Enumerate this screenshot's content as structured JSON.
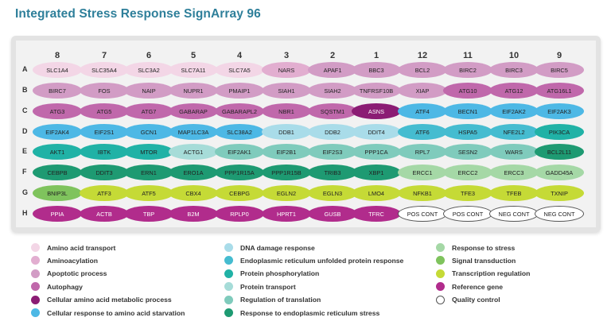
{
  "title": "Integrated Stress Response SignArray 96",
  "columns": [
    "8",
    "7",
    "6",
    "5",
    "4",
    "3",
    "2",
    "1",
    "12",
    "11",
    "10",
    "9"
  ],
  "rows": [
    {
      "label": "A",
      "wells": [
        {
          "gene": "SLC1A4",
          "cat": "amino_acid_transport"
        },
        {
          "gene": "SLC35A4",
          "cat": "amino_acid_transport"
        },
        {
          "gene": "SLC3A2",
          "cat": "amino_acid_transport"
        },
        {
          "gene": "SLC7A11",
          "cat": "amino_acid_transport"
        },
        {
          "gene": "SLC7A5",
          "cat": "amino_acid_transport"
        },
        {
          "gene": "NARS",
          "cat": "aminoacylation"
        },
        {
          "gene": "APAF1",
          "cat": "apoptotic"
        },
        {
          "gene": "BBC3",
          "cat": "apoptotic"
        },
        {
          "gene": "BCL2",
          "cat": "apoptotic"
        },
        {
          "gene": "BIRC2",
          "cat": "apoptotic"
        },
        {
          "gene": "BIRC3",
          "cat": "apoptotic"
        },
        {
          "gene": "BIRC5",
          "cat": "apoptotic"
        }
      ]
    },
    {
      "label": "B",
      "wells": [
        {
          "gene": "BIRC7",
          "cat": "apoptotic"
        },
        {
          "gene": "FOS",
          "cat": "apoptotic"
        },
        {
          "gene": "NAIP",
          "cat": "apoptotic"
        },
        {
          "gene": "NUPR1",
          "cat": "apoptotic"
        },
        {
          "gene": "PMAIP1",
          "cat": "apoptotic"
        },
        {
          "gene": "SIAH1",
          "cat": "apoptotic"
        },
        {
          "gene": "SIAH2",
          "cat": "apoptotic"
        },
        {
          "gene": "TNFRSF10B",
          "cat": "apoptotic"
        },
        {
          "gene": "XIAP",
          "cat": "apoptotic"
        },
        {
          "gene": "ATG10",
          "cat": "autophagy"
        },
        {
          "gene": "ATG12",
          "cat": "autophagy"
        },
        {
          "gene": "ATG16L1",
          "cat": "autophagy"
        }
      ]
    },
    {
      "label": "C",
      "wells": [
        {
          "gene": "ATG3",
          "cat": "autophagy"
        },
        {
          "gene": "ATG5",
          "cat": "autophagy"
        },
        {
          "gene": "ATG7",
          "cat": "autophagy"
        },
        {
          "gene": "GABARAP",
          "cat": "autophagy"
        },
        {
          "gene": "GABARAPL2",
          "cat": "autophagy"
        },
        {
          "gene": "NBR1",
          "cat": "autophagy"
        },
        {
          "gene": "SQSTM1",
          "cat": "autophagy"
        },
        {
          "gene": "ASNS",
          "cat": "amino_acid_metabolic"
        },
        {
          "gene": "ATF4",
          "cat": "aa_starvation"
        },
        {
          "gene": "BECN1",
          "cat": "aa_starvation"
        },
        {
          "gene": "EIF2AK2",
          "cat": "aa_starvation"
        },
        {
          "gene": "EIF2AK3",
          "cat": "aa_starvation"
        }
      ]
    },
    {
      "label": "D",
      "wells": [
        {
          "gene": "EIF2AK4",
          "cat": "aa_starvation"
        },
        {
          "gene": "EIF2S1",
          "cat": "aa_starvation"
        },
        {
          "gene": "GCN1",
          "cat": "aa_starvation"
        },
        {
          "gene": "MAP1LC3A",
          "cat": "aa_starvation"
        },
        {
          "gene": "SLC38A2",
          "cat": "aa_starvation"
        },
        {
          "gene": "DDB1",
          "cat": "dna_damage"
        },
        {
          "gene": "DDB2",
          "cat": "dna_damage"
        },
        {
          "gene": "DDIT4",
          "cat": "dna_damage"
        },
        {
          "gene": "ATF6",
          "cat": "er_upr"
        },
        {
          "gene": "HSPA5",
          "cat": "er_upr"
        },
        {
          "gene": "NFE2L2",
          "cat": "er_upr"
        },
        {
          "gene": "PIK3CA",
          "cat": "protein_phosphorylation"
        }
      ]
    },
    {
      "label": "E",
      "wells": [
        {
          "gene": "AKT1",
          "cat": "protein_phosphorylation"
        },
        {
          "gene": "IBTK",
          "cat": "protein_phosphorylation"
        },
        {
          "gene": "MTOR",
          "cat": "protein_phosphorylation"
        },
        {
          "gene": "ACTG1",
          "cat": "protein_transport"
        },
        {
          "gene": "EIF2AK1",
          "cat": "regulation_translation"
        },
        {
          "gene": "EIF2B1",
          "cat": "regulation_translation"
        },
        {
          "gene": "EIF2S3",
          "cat": "regulation_translation"
        },
        {
          "gene": "PPP1CA",
          "cat": "regulation_translation"
        },
        {
          "gene": "RPL7",
          "cat": "regulation_translation"
        },
        {
          "gene": "SESN2",
          "cat": "regulation_translation"
        },
        {
          "gene": "WARS",
          "cat": "regulation_translation"
        },
        {
          "gene": "BCL2L11",
          "cat": "er_stress"
        }
      ]
    },
    {
      "label": "F",
      "wells": [
        {
          "gene": "CEBPB",
          "cat": "er_stress"
        },
        {
          "gene": "DDIT3",
          "cat": "er_stress"
        },
        {
          "gene": "ERN1",
          "cat": "er_stress"
        },
        {
          "gene": "ERO1A",
          "cat": "er_stress"
        },
        {
          "gene": "PPP1R15A",
          "cat": "er_stress"
        },
        {
          "gene": "PPP1R15B",
          "cat": "er_stress"
        },
        {
          "gene": "TRIB3",
          "cat": "er_stress"
        },
        {
          "gene": "XBP1",
          "cat": "er_stress"
        },
        {
          "gene": "ERCC1",
          "cat": "response_stress"
        },
        {
          "gene": "ERCC2",
          "cat": "response_stress"
        },
        {
          "gene": "ERCC3",
          "cat": "response_stress"
        },
        {
          "gene": "GADD45A",
          "cat": "response_stress"
        }
      ]
    },
    {
      "label": "G",
      "wells": [
        {
          "gene": "BNIP3L",
          "cat": "signal_transduction"
        },
        {
          "gene": "ATF3",
          "cat": "transcription_regulation"
        },
        {
          "gene": "ATF5",
          "cat": "transcription_regulation"
        },
        {
          "gene": "CBX4",
          "cat": "transcription_regulation"
        },
        {
          "gene": "CEBPG",
          "cat": "transcription_regulation"
        },
        {
          "gene": "EGLN2",
          "cat": "transcription_regulation"
        },
        {
          "gene": "EGLN3",
          "cat": "transcription_regulation"
        },
        {
          "gene": "LMO4",
          "cat": "transcription_regulation"
        },
        {
          "gene": "NFKB1",
          "cat": "transcription_regulation"
        },
        {
          "gene": "TFE3",
          "cat": "transcription_regulation"
        },
        {
          "gene": "TFEB",
          "cat": "transcription_regulation"
        },
        {
          "gene": "TXNIP",
          "cat": "transcription_regulation"
        }
      ]
    },
    {
      "label": "H",
      "wells": [
        {
          "gene": "PPIA",
          "cat": "reference_gene"
        },
        {
          "gene": "ACTB",
          "cat": "reference_gene"
        },
        {
          "gene": "TBP",
          "cat": "reference_gene"
        },
        {
          "gene": "B2M",
          "cat": "reference_gene"
        },
        {
          "gene": "RPLP0",
          "cat": "reference_gene"
        },
        {
          "gene": "HPRT1",
          "cat": "reference_gene"
        },
        {
          "gene": "GUSB",
          "cat": "reference_gene"
        },
        {
          "gene": "TFRC",
          "cat": "reference_gene"
        },
        {
          "gene": "POS CONT",
          "cat": "quality_control"
        },
        {
          "gene": "POS CONT",
          "cat": "quality_control"
        },
        {
          "gene": "NEG CONT",
          "cat": "quality_control"
        },
        {
          "gene": "NEG CONT",
          "cat": "quality_control"
        }
      ]
    }
  ],
  "categories": {
    "amino_acid_transport": {
      "label": "Amino acid transport",
      "color": "#f3d6e6",
      "dark": false
    },
    "aminoacylation": {
      "label": "Aminoacylation",
      "color": "#e2aed0",
      "dark": false
    },
    "apoptotic": {
      "label": "Apoptotic process",
      "color": "#d29cc5",
      "dark": false
    },
    "autophagy": {
      "label": "Autophagy",
      "color": "#c068ab",
      "dark": false
    },
    "amino_acid_metabolic": {
      "label": "Cellular amino acid metabolic process",
      "color": "#8b1c74",
      "dark": true
    },
    "aa_starvation": {
      "label": "Cellular response to amino acid starvation",
      "color": "#4db8e5",
      "dark": false
    },
    "dna_damage": {
      "label": "DNA damage response",
      "color": "#a9dce9",
      "dark": false
    },
    "er_upr": {
      "label": "Endoplasmic reticulum unfolded protein response",
      "color": "#45bcd0",
      "dark": false
    },
    "protein_phosphorylation": {
      "label": "Protein phosphorylation",
      "color": "#20b2a6",
      "dark": false
    },
    "protein_transport": {
      "label": "Protein transport",
      "color": "#a6dcd8",
      "dark": false
    },
    "regulation_translation": {
      "label": "Regulation of translation",
      "color": "#7fcbbc",
      "dark": false
    },
    "er_stress": {
      "label": "Response to endoplasmic reticulum stress",
      "color": "#1e9a72",
      "dark": false
    },
    "response_stress": {
      "label": "Response to stress",
      "color": "#a5d8a6",
      "dark": false
    },
    "signal_transduction": {
      "label": "Signal transduction",
      "color": "#7fc35d",
      "dark": false
    },
    "transcription_regulation": {
      "label": "Transcription regulation",
      "color": "#c5da36",
      "dark": false
    },
    "reference_gene": {
      "label": "Reference gene",
      "color": "#b12c8c",
      "dark": true
    },
    "quality_control": {
      "label": "Quality control",
      "color": "#ffffff",
      "dark": false
    }
  },
  "legend": [
    [
      "amino_acid_transport",
      "aminoacylation",
      "apoptotic",
      "autophagy",
      "amino_acid_metabolic",
      "aa_starvation"
    ],
    [
      "dna_damage",
      "er_upr",
      "protein_phosphorylation",
      "protein_transport",
      "regulation_translation",
      "er_stress"
    ],
    [
      "response_stress",
      "signal_transduction",
      "transcription_regulation",
      "reference_gene",
      "quality_control"
    ]
  ]
}
